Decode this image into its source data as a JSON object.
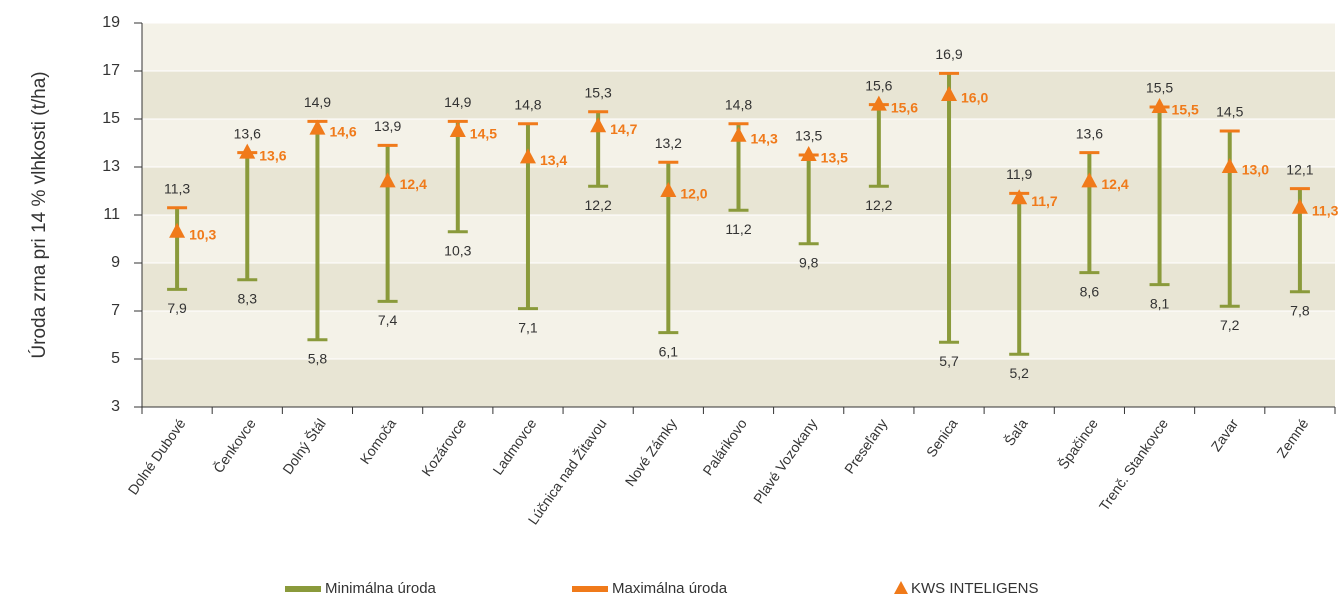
{
  "chart_data": {
    "type": "range",
    "ylabel": "Úroda zrna pri 14 % vlhkosti (t/ha)",
    "categories": [
      "Dolné Dubové",
      "Čenkovce",
      "Dolný Štál",
      "Komoča",
      "Kozárovce",
      "Ladmovce",
      "Lúčnica nad Žitavou",
      "Nové Zámky",
      "Palárikovo",
      "Plavé Vozokany",
      "Preseľany",
      "Senica",
      "Šaľa",
      "Špačince",
      "Trenč. Stankovce",
      "Zavar",
      "Zemné"
    ],
    "series": [
      {
        "name": "Minimálna úroda",
        "color": "#8a9a3b",
        "values": [
          7.9,
          8.3,
          5.8,
          7.4,
          10.3,
          7.1,
          12.2,
          6.1,
          11.2,
          9.8,
          12.2,
          5.7,
          5.2,
          8.6,
          8.1,
          7.2,
          7.8
        ],
        "value_labels": [
          "7,9",
          "8,3",
          "5,8",
          "7,4",
          "10,3",
          "7,1",
          "12,2",
          "6,1",
          "11,2",
          "9,8",
          "12,2",
          "5,7",
          "5,2",
          "8,6",
          "8,1",
          "7,2",
          "7,8"
        ]
      },
      {
        "name": "Maximálna úroda",
        "color": "#f07a1a",
        "values": [
          11.3,
          13.6,
          14.9,
          13.9,
          14.9,
          14.8,
          15.3,
          13.2,
          14.8,
          13.5,
          15.6,
          16.9,
          11.9,
          13.6,
          15.5,
          14.5,
          12.1
        ],
        "value_labels": [
          "11,3",
          "13,6",
          "14,9",
          "13,9",
          "14,9",
          "14,8",
          "15,3",
          "13,2",
          "14,8",
          "13,5",
          "15,6",
          "16,9",
          "11,9",
          "13,6",
          "15,5",
          "14,5",
          "12,1"
        ]
      },
      {
        "name": "KWS INTELIGENS",
        "color": "#f07a1a",
        "values": [
          10.3,
          13.6,
          14.6,
          12.4,
          14.5,
          13.4,
          14.7,
          12.0,
          14.3,
          13.5,
          15.6,
          16.0,
          11.7,
          12.4,
          15.5,
          13.0,
          11.3
        ],
        "value_labels": [
          "10,3",
          "13,6",
          "14,6",
          "12,4",
          "14,5",
          "13,4",
          "14,7",
          "12,0",
          "14,3",
          "13,5",
          "15,6",
          "16,0",
          "11,7",
          "12,4",
          "15,5",
          "13,0",
          "11,3"
        ]
      }
    ],
    "ylim": [
      3,
      19
    ],
    "yticks": [
      3,
      5,
      7,
      9,
      11,
      13,
      15,
      17,
      19
    ],
    "grid": true
  }
}
